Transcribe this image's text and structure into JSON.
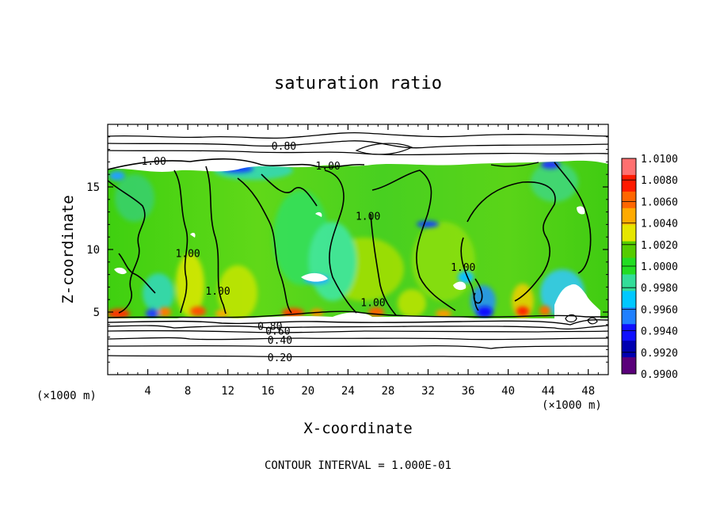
{
  "chart_data": {
    "type": "heatmap",
    "title": "saturation ratio",
    "xlabel": "X-coordinate",
    "ylabel": "Z-coordinate",
    "x_unit_left": "(×1000 m)",
    "x_unit_right": "(×1000 m)",
    "xlim": [
      0,
      50
    ],
    "ylim": [
      0,
      20
    ],
    "x_ticks": [
      4,
      8,
      12,
      16,
      20,
      24,
      28,
      32,
      36,
      40,
      44,
      48
    ],
    "x_tick_labels": [
      "4",
      "8",
      "12",
      "16",
      "20",
      "24",
      "28",
      "32",
      "36",
      "40",
      "44",
      "48"
    ],
    "y_ticks": [
      5,
      10,
      15
    ],
    "y_tick_labels": [
      "5",
      "10",
      "15"
    ],
    "colorbar": {
      "min": 0.99,
      "max": 1.01,
      "tick_labels": [
        "1.0100",
        "1.0080",
        "1.0060",
        "1.0040",
        "1.0020",
        "1.0000",
        "0.9980",
        "0.9960",
        "0.9940",
        "0.9920",
        "0.9900"
      ],
      "colors": [
        "#ff7070",
        "#ff1a00",
        "#ff6600",
        "#ffaa00",
        "#e6e600",
        "#55cc00",
        "#22dd22",
        "#33dd99",
        "#00c8ff",
        "#2080ff",
        "#1010ff",
        "#0000b0",
        "#5a007a"
      ]
    },
    "contour_labels": [
      {
        "text": "0.80",
        "x": 17.6,
        "z": 18.3
      },
      {
        "text": "1.00",
        "x": 4.6,
        "z": 17.1
      },
      {
        "text": "1.00",
        "x": 22.0,
        "z": 16.7
      },
      {
        "text": "1.00",
        "x": 26.0,
        "z": 12.7
      },
      {
        "text": "1.00",
        "x": 8.0,
        "z": 9.7
      },
      {
        "text": "1.00",
        "x": 11.0,
        "z": 6.7
      },
      {
        "text": "1.00",
        "x": 26.5,
        "z": 5.8
      },
      {
        "text": "1.00",
        "x": 35.5,
        "z": 8.6
      },
      {
        "text": "0.80",
        "x": 16.2,
        "z": 3.9
      },
      {
        "text": "0.60",
        "x": 17.0,
        "z": 3.5
      },
      {
        "text": "0.40",
        "x": 17.2,
        "z": 2.8
      },
      {
        "text": "0.20",
        "x": 17.2,
        "z": 1.4
      }
    ],
    "contour_interval_text": "CONTOUR INTERVAL = 1.000E-01",
    "colorbar_position": "right"
  }
}
